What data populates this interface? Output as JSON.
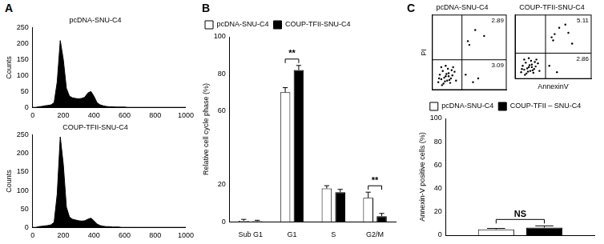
{
  "chart_data": [
    {
      "type": "line",
      "panel_label": "A",
      "title": "pcDNA-SNU-C4",
      "y_label": "Counts",
      "x": [
        0,
        20,
        40,
        60,
        80,
        100,
        120,
        140,
        160,
        180,
        200,
        220,
        240,
        260,
        280,
        300,
        320,
        340,
        360,
        380,
        400,
        420,
        440,
        460,
        480,
        500,
        520,
        540,
        560,
        580,
        600,
        620,
        640,
        660,
        680,
        700,
        720,
        740,
        760,
        780,
        800,
        820,
        840,
        860,
        880,
        900,
        920,
        940,
        960,
        980,
        1000
      ],
      "values": [
        0,
        0,
        2,
        3,
        5,
        6,
        8,
        15,
        80,
        210,
        150,
        60,
        35,
        30,
        28,
        27,
        28,
        32,
        45,
        50,
        35,
        15,
        8,
        5,
        3,
        2,
        2,
        1,
        1,
        1,
        1,
        0,
        0,
        0,
        0,
        0,
        0,
        0,
        0,
        0,
        0,
        0,
        0,
        0,
        0,
        0,
        0,
        0,
        0,
        0,
        0
      ],
      "color": "#000000",
      "xlim": [
        0,
        1000
      ],
      "xticks": [
        0,
        200,
        400,
        600,
        800,
        1000
      ],
      "ylim": [
        0,
        250
      ],
      "yticks": [
        0,
        50,
        100,
        150,
        200,
        250
      ],
      "grid": false
    },
    {
      "type": "line",
      "title": "COUP-TFII-SNU-C4",
      "y_label": "Counts",
      "x": [
        0,
        20,
        40,
        60,
        80,
        100,
        120,
        140,
        160,
        180,
        200,
        220,
        240,
        260,
        280,
        300,
        320,
        340,
        360,
        380,
        400,
        420,
        440,
        460,
        480,
        500,
        520,
        540,
        560,
        580,
        600,
        620,
        640,
        660,
        680,
        700,
        720,
        740,
        760,
        780,
        800,
        820,
        840,
        860,
        880,
        900,
        920,
        940,
        960,
        980,
        1000
      ],
      "values": [
        0,
        0,
        2,
        3,
        4,
        5,
        7,
        14,
        90,
        245,
        170,
        55,
        28,
        22,
        20,
        18,
        17,
        18,
        22,
        25,
        18,
        9,
        5,
        3,
        2,
        2,
        1,
        1,
        1,
        0,
        0,
        0,
        0,
        0,
        0,
        0,
        0,
        0,
        0,
        0,
        0,
        0,
        0,
        0,
        0,
        0,
        0,
        0,
        0,
        0,
        0
      ],
      "color": "#000000",
      "xlim": [
        0,
        1000
      ],
      "xticks": [
        0,
        200,
        400,
        600,
        800,
        1000
      ],
      "ylim": [
        0,
        250
      ],
      "yticks": [
        0,
        50,
        100,
        150,
        200,
        250
      ],
      "grid": false
    },
    {
      "type": "bar",
      "panel_label": "B",
      "y_label": "Relative cell cycle phase (%)",
      "categories": [
        "Sub G1",
        "G1",
        "S",
        "G2/M"
      ],
      "series": [
        {
          "name": "pcDNA-SNU-C4",
          "color": "#ffffff",
          "values": [
            0.5,
            70,
            18,
            13
          ],
          "errors": [
            0.8,
            2.5,
            1.5,
            3
          ]
        },
        {
          "name": "COUP-TFII-SNU-C4",
          "color": "#000000",
          "values": [
            0.3,
            82,
            16,
            3
          ],
          "errors": [
            0.5,
            2.5,
            1.5,
            1.5
          ]
        }
      ],
      "ylim": [
        0,
        100
      ],
      "yticks": [
        0,
        20,
        60,
        80,
        100
      ],
      "grid": false,
      "legend": "top-left",
      "annotations": [
        {
          "text": "**",
          "category": "G1"
        },
        {
          "text": "**",
          "category": "G2/M"
        }
      ]
    },
    {
      "type": "scatter",
      "panel_label": "C",
      "title": "pcDNA-SNU-C4",
      "y_label": "PI",
      "x": [
        8,
        12,
        15,
        18,
        20,
        22,
        25,
        10,
        14,
        17,
        21,
        24,
        27,
        30,
        12,
        16,
        19,
        23,
        26,
        13,
        18,
        22,
        9,
        28,
        32,
        45,
        55,
        62,
        50,
        70,
        48,
        58
      ],
      "values": [
        10,
        14,
        8,
        18,
        12,
        22,
        15,
        20,
        25,
        11,
        28,
        9,
        19,
        24,
        30,
        16,
        21,
        13,
        26,
        6,
        32,
        18,
        15,
        30,
        12,
        20,
        10,
        15,
        60,
        72,
        65,
        80
      ],
      "color": "#000000",
      "xlim": [
        0,
        100
      ],
      "ylim": [
        0,
        100
      ],
      "tick_labels": false,
      "grid": false,
      "gates": {
        "x": 40,
        "y": 40
      },
      "quadrant_values": {
        "upper_right": 2.89,
        "lower_right": 3.09
      }
    },
    {
      "type": "scatter",
      "title": "COUP-TFII-SNU-C4",
      "x_label": "AnnexinV",
      "x": [
        8,
        12,
        15,
        18,
        20,
        22,
        25,
        10,
        14,
        17,
        21,
        24,
        27,
        30,
        12,
        16,
        19,
        23,
        26,
        13,
        18,
        22,
        9,
        28,
        32,
        45,
        55,
        50,
        70,
        48,
        58,
        52,
        66,
        75
      ],
      "values": [
        10,
        14,
        8,
        18,
        12,
        22,
        15,
        20,
        25,
        11,
        28,
        9,
        19,
        24,
        30,
        16,
        21,
        13,
        26,
        6,
        32,
        18,
        15,
        30,
        12,
        20,
        10,
        60,
        72,
        65,
        80,
        70,
        85,
        55
      ],
      "color": "#000000",
      "xlim": [
        0,
        100
      ],
      "ylim": [
        0,
        100
      ],
      "tick_labels": false,
      "grid": false,
      "gates": {
        "x": 40,
        "y": 40
      },
      "quadrant_values": {
        "upper_right": 5.11,
        "lower_right": 2.86
      }
    },
    {
      "type": "bar",
      "y_label": "Annexin-V positive cells (%)",
      "categories": [
        null
      ],
      "series": [
        {
          "name": "pcDNA-SNU-C4",
          "color": "#ffffff",
          "values": [
            5
          ],
          "errors": [
            0.8
          ]
        },
        {
          "name": "COUP-TFII – SNU-C4",
          "color": "#000000",
          "values": [
            6.5
          ],
          "errors": [
            1.5
          ]
        }
      ],
      "ylim": [
        0,
        100
      ],
      "yticks": [
        0,
        20,
        40,
        60,
        80,
        100
      ],
      "grid": false,
      "legend": "top",
      "tick_labels": "y",
      "annotations": [
        {
          "text": "NS",
          "category": null
        }
      ]
    }
  ]
}
